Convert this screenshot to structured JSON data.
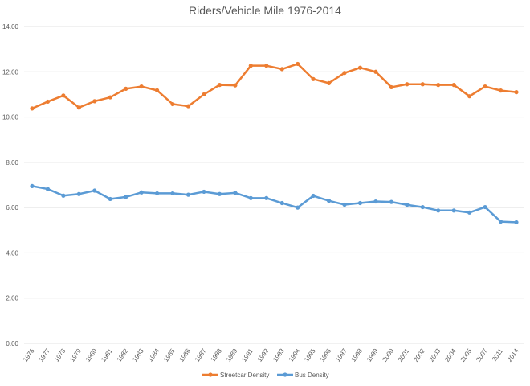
{
  "chart_data": {
    "type": "line",
    "title": "Riders/Vehicle Mile 1976-2014",
    "xlabel": "",
    "ylabel": "",
    "ylim": [
      0,
      14
    ],
    "yticks": [
      "0.00",
      "2.00",
      "4.00",
      "6.00",
      "8.00",
      "10.00",
      "12.00",
      "14.00"
    ],
    "grid": true,
    "legend_position": "bottom",
    "categories": [
      "1976",
      "1977",
      "1978",
      "1979",
      "1980",
      "1981",
      "1982",
      "1983",
      "1984",
      "1985",
      "1986",
      "1987",
      "1988",
      "1989",
      "1991",
      "1992",
      "1993",
      "1994",
      "1995",
      "1996",
      "1997",
      "1998",
      "1999",
      "2000",
      "2001",
      "2002",
      "2003",
      "2004",
      "2005",
      "2007",
      "2011",
      "2014"
    ],
    "series": [
      {
        "name": "Streetcar Density",
        "color": "#ED7D31",
        "values": [
          10.38,
          10.68,
          10.95,
          10.42,
          10.7,
          10.87,
          11.25,
          11.35,
          11.18,
          10.57,
          10.48,
          11.0,
          11.42,
          11.4,
          12.27,
          12.27,
          12.12,
          12.35,
          11.68,
          11.5,
          11.95,
          12.18,
          12.0,
          11.32,
          11.45,
          11.45,
          11.42,
          11.42,
          10.92,
          11.35,
          11.17,
          11.1
        ]
      },
      {
        "name": "Bus Density",
        "color": "#5B9BD5",
        "values": [
          6.95,
          6.82,
          6.53,
          6.6,
          6.75,
          6.38,
          6.47,
          6.67,
          6.63,
          6.63,
          6.57,
          6.7,
          6.6,
          6.65,
          6.42,
          6.42,
          6.2,
          6.0,
          6.52,
          6.3,
          6.13,
          6.2,
          6.27,
          6.25,
          6.12,
          6.02,
          5.87,
          5.87,
          5.78,
          6.02,
          5.38,
          5.35
        ]
      }
    ]
  }
}
